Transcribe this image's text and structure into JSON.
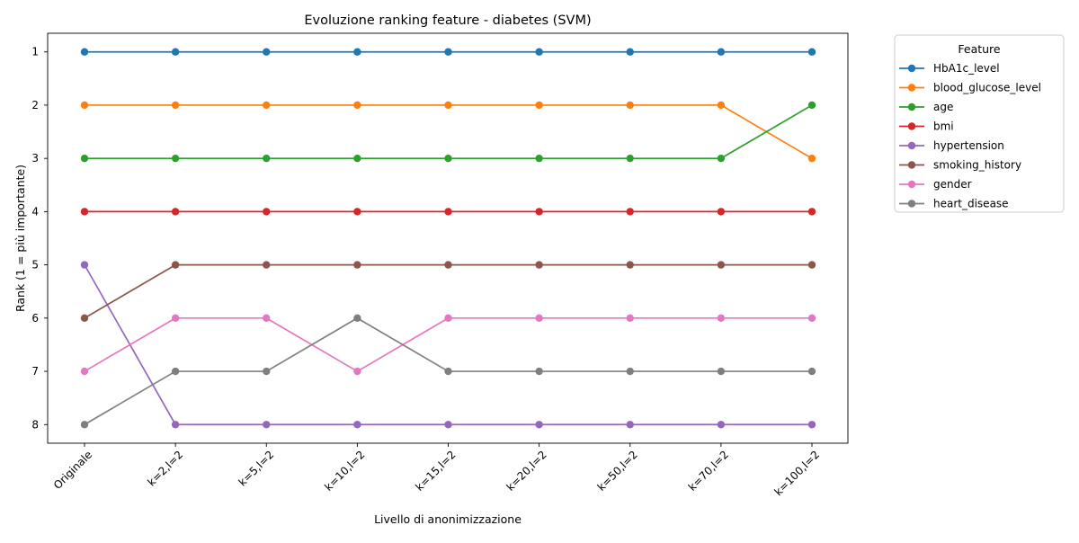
{
  "chart_data": {
    "type": "line",
    "title": "Evoluzione ranking feature - diabetes (SVM)",
    "xlabel": "Livello di anonimizzazione",
    "ylabel": "Rank (1 = più importante)",
    "categories": [
      "Originale",
      "k=2,l=2",
      "k=5,l=2",
      "k=10,l=2",
      "k=15,l=2",
      "k=20,l=2",
      "k=50,l=2",
      "k=70,l=2",
      "k=100,l=2"
    ],
    "yticks": [
      "1",
      "2",
      "3",
      "4",
      "5",
      "6",
      "7",
      "8"
    ],
    "ylim": [
      8.35,
      0.65
    ],
    "y_inverted": true,
    "grid": false,
    "legend_position": "outside right, top",
    "legend_title": "Feature",
    "series": [
      {
        "name": "HbA1c_level",
        "color": "#1f77b4",
        "values": [
          1,
          1,
          1,
          1,
          1,
          1,
          1,
          1,
          1
        ]
      },
      {
        "name": "blood_glucose_level",
        "color": "#ff7f0e",
        "values": [
          2,
          2,
          2,
          2,
          2,
          2,
          2,
          2,
          3
        ]
      },
      {
        "name": "age",
        "color": "#2ca02c",
        "values": [
          3,
          3,
          3,
          3,
          3,
          3,
          3,
          3,
          2
        ]
      },
      {
        "name": "bmi",
        "color": "#d62728",
        "values": [
          4,
          4,
          4,
          4,
          4,
          4,
          4,
          4,
          4
        ]
      },
      {
        "name": "hypertension",
        "color": "#9467bd",
        "values": [
          5,
          8,
          8,
          8,
          8,
          8,
          8,
          8,
          8
        ]
      },
      {
        "name": "smoking_history",
        "color": "#8c564b",
        "values": [
          6,
          5,
          5,
          5,
          5,
          5,
          5,
          5,
          5
        ]
      },
      {
        "name": "gender",
        "color": "#e377c2",
        "values": [
          7,
          6,
          6,
          7,
          6,
          6,
          6,
          6,
          6
        ]
      },
      {
        "name": "heart_disease",
        "color": "#7f7f7f",
        "values": [
          8,
          7,
          7,
          6,
          7,
          7,
          7,
          7,
          7
        ]
      }
    ]
  }
}
